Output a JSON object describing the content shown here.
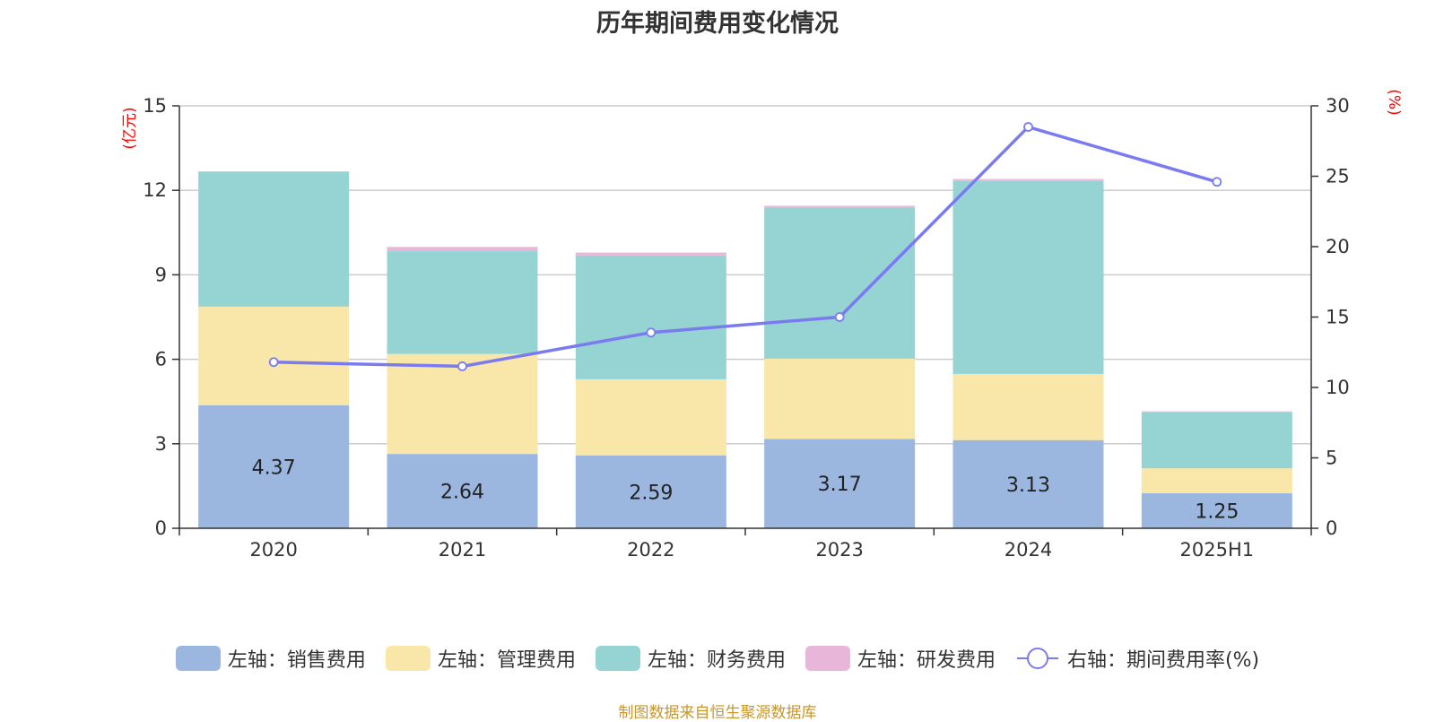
{
  "chart_data": {
    "type": "bar",
    "title": "历年期间费用变化情况",
    "categories": [
      "2020",
      "2021",
      "2022",
      "2023",
      "2024",
      "2025H1"
    ],
    "left_axis": {
      "unit": "(亿元)",
      "ylim": [
        0,
        15
      ],
      "ticks": [
        "0",
        "3",
        "6",
        "9",
        "12",
        "15"
      ]
    },
    "right_axis": {
      "unit": "(%)",
      "ylim": [
        0,
        30
      ],
      "ticks": [
        "0",
        "5",
        "10",
        "15",
        "20",
        "25",
        "30"
      ]
    },
    "stacked": true,
    "series": [
      {
        "name": "左轴：销售费用",
        "axis": "left",
        "type": "bar",
        "color": "#9bb7e0",
        "values": [
          4.37,
          2.64,
          2.59,
          3.17,
          3.13,
          1.25
        ],
        "labels": [
          "4.37",
          "2.64",
          "2.59",
          "3.17",
          "3.13",
          "1.25"
        ]
      },
      {
        "name": "左轴：管理费用",
        "axis": "left",
        "type": "bar",
        "color": "#f8e7a8",
        "values": [
          3.5,
          3.55,
          2.7,
          2.85,
          2.35,
          0.88
        ]
      },
      {
        "name": "左轴：财务费用",
        "axis": "left",
        "type": "bar",
        "color": "#96d4d4",
        "values": [
          4.8,
          3.65,
          4.4,
          5.35,
          6.85,
          2.0
        ]
      },
      {
        "name": "左轴：研发费用",
        "axis": "left",
        "type": "bar",
        "color": "#e8b6d8",
        "values": [
          0.0,
          0.15,
          0.1,
          0.08,
          0.07,
          0.02
        ]
      },
      {
        "name": "右轴：期间费用率(%)",
        "axis": "right",
        "type": "line",
        "color": "#7b7bf0",
        "values": [
          11.8,
          11.5,
          13.9,
          15.0,
          28.5,
          24.6
        ]
      }
    ],
    "grid": true,
    "legend_position": "bottom"
  },
  "source": "制图数据来自恒生聚源数据库"
}
